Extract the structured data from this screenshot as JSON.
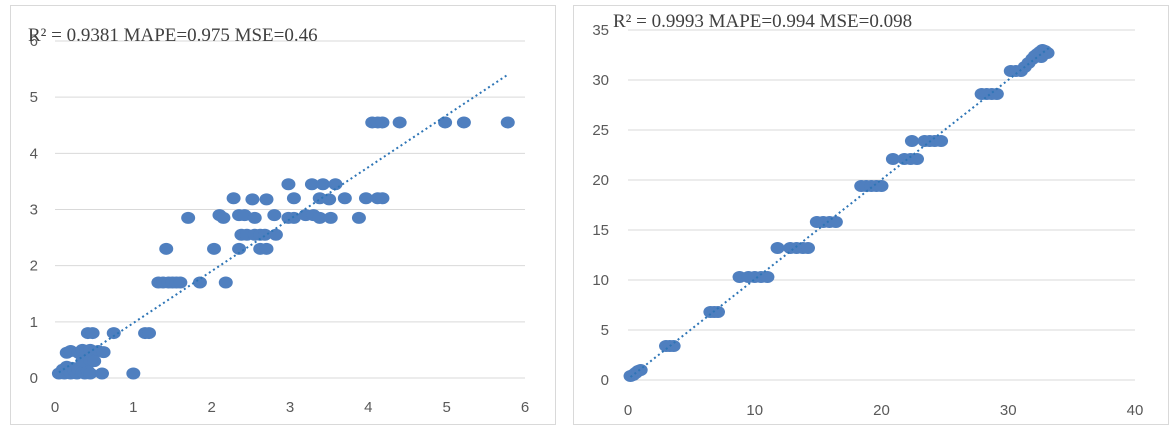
{
  "chart_data": [
    {
      "type": "scatter",
      "title": "R² = 0.9381 MAPE=0.975 MSE=0.46",
      "xlabel": "",
      "ylabel": "",
      "xlim": [
        0,
        6
      ],
      "ylim": [
        0,
        6
      ],
      "x_ticks": [
        "0",
        "1",
        "2",
        "3",
        "4",
        "5",
        "6"
      ],
      "y_ticks": [
        "0",
        "1",
        "2",
        "3",
        "4",
        "5",
        "6"
      ],
      "grid": "horizontal",
      "marker_color": "#4f7fbf",
      "trendline": {
        "style": "dotted",
        "color": "#2e75b6",
        "from": [
          0.05,
          0.1
        ],
        "to": [
          5.78,
          5.4
        ]
      },
      "series": [
        {
          "points": [
            [
              0.05,
              0.08
            ],
            [
              0.08,
              0.1
            ],
            [
              0.1,
              0.15
            ],
            [
              0.12,
              0.08
            ],
            [
              0.15,
              0.2
            ],
            [
              0.18,
              0.12
            ],
            [
              0.2,
              0.08
            ],
            [
              0.22,
              0.18
            ],
            [
              0.25,
              0.12
            ],
            [
              0.28,
              0.08
            ],
            [
              0.3,
              0.15
            ],
            [
              0.33,
              0.2
            ],
            [
              0.35,
              0.1
            ],
            [
              0.38,
              0.08
            ],
            [
              0.4,
              0.18
            ],
            [
              0.42,
              0.12
            ],
            [
              0.45,
              0.08
            ],
            [
              0.15,
              0.45
            ],
            [
              0.2,
              0.48
            ],
            [
              0.3,
              0.45
            ],
            [
              0.35,
              0.5
            ],
            [
              0.4,
              0.48
            ],
            [
              0.45,
              0.5
            ],
            [
              0.5,
              0.46
            ],
            [
              0.55,
              0.48
            ],
            [
              0.62,
              0.46
            ],
            [
              0.42,
              0.8
            ],
            [
              0.48,
              0.8
            ],
            [
              0.75,
              0.8
            ],
            [
              0.35,
              0.3
            ],
            [
              0.45,
              0.32
            ],
            [
              0.5,
              0.3
            ],
            [
              0.6,
              0.08
            ],
            [
              1.0,
              0.08
            ],
            [
              1.15,
              0.8
            ],
            [
              1.2,
              0.8
            ],
            [
              1.32,
              1.7
            ],
            [
              1.38,
              1.7
            ],
            [
              1.45,
              1.7
            ],
            [
              1.5,
              1.7
            ],
            [
              1.55,
              1.7
            ],
            [
              1.6,
              1.7
            ],
            [
              1.85,
              1.7
            ],
            [
              2.18,
              1.7
            ],
            [
              1.42,
              2.3
            ],
            [
              2.03,
              2.3
            ],
            [
              2.35,
              2.3
            ],
            [
              2.62,
              2.3
            ],
            [
              2.7,
              2.3
            ],
            [
              2.38,
              2.55
            ],
            [
              2.45,
              2.55
            ],
            [
              2.55,
              2.55
            ],
            [
              2.62,
              2.55
            ],
            [
              2.68,
              2.55
            ],
            [
              2.82,
              2.55
            ],
            [
              1.7,
              2.85
            ],
            [
              2.1,
              2.9
            ],
            [
              2.15,
              2.85
            ],
            [
              2.35,
              2.9
            ],
            [
              2.42,
              2.9
            ],
            [
              2.55,
              2.85
            ],
            [
              2.8,
              2.9
            ],
            [
              2.98,
              2.85
            ],
            [
              3.05,
              2.85
            ],
            [
              3.2,
              2.9
            ],
            [
              3.3,
              2.9
            ],
            [
              3.38,
              2.85
            ],
            [
              3.52,
              2.85
            ],
            [
              3.88,
              2.85
            ],
            [
              2.28,
              3.2
            ],
            [
              2.52,
              3.18
            ],
            [
              2.7,
              3.18
            ],
            [
              3.05,
              3.2
            ],
            [
              3.38,
              3.2
            ],
            [
              3.5,
              3.18
            ],
            [
              3.7,
              3.2
            ],
            [
              3.97,
              3.2
            ],
            [
              4.12,
              3.2
            ],
            [
              4.18,
              3.2
            ],
            [
              2.98,
              3.45
            ],
            [
              3.28,
              3.45
            ],
            [
              3.42,
              3.45
            ],
            [
              3.58,
              3.45
            ],
            [
              4.05,
              4.55
            ],
            [
              4.12,
              4.55
            ],
            [
              4.18,
              4.55
            ],
            [
              4.4,
              4.55
            ],
            [
              4.98,
              4.55
            ],
            [
              5.22,
              4.55
            ],
            [
              5.78,
              4.55
            ]
          ]
        }
      ]
    },
    {
      "type": "scatter",
      "title": "R² = 0.9993  MAPE=0.994 MSE=0.098",
      "xlabel": "",
      "ylabel": "",
      "xlim": [
        0,
        40
      ],
      "ylim": [
        0,
        35
      ],
      "x_ticks": [
        "0",
        "10",
        "20",
        "30",
        "40"
      ],
      "y_ticks": [
        "0",
        "5",
        "10",
        "15",
        "20",
        "25",
        "30",
        "35"
      ],
      "grid": "horizontal",
      "marker_color": "#4f7fbf",
      "trendline": {
        "style": "dotted",
        "color": "#2e75b6",
        "from": [
          0.2,
          0.3
        ],
        "to": [
          33.2,
          33.2
        ]
      },
      "series": [
        {
          "points": [
            [
              0.2,
              0.4
            ],
            [
              0.4,
              0.5
            ],
            [
              0.6,
              0.7
            ],
            [
              0.8,
              0.9
            ],
            [
              1.0,
              1.0
            ],
            [
              3.0,
              3.4
            ],
            [
              3.3,
              3.4
            ],
            [
              3.6,
              3.4
            ],
            [
              6.5,
              6.8
            ],
            [
              6.8,
              6.8
            ],
            [
              7.1,
              6.8
            ],
            [
              8.8,
              10.3
            ],
            [
              9.5,
              10.3
            ],
            [
              10.0,
              10.3
            ],
            [
              10.5,
              10.3
            ],
            [
              11.0,
              10.3
            ],
            [
              11.8,
              13.2
            ],
            [
              12.8,
              13.2
            ],
            [
              13.3,
              13.2
            ],
            [
              13.8,
              13.2
            ],
            [
              14.2,
              13.2
            ],
            [
              14.9,
              15.8
            ],
            [
              15.4,
              15.8
            ],
            [
              15.9,
              15.8
            ],
            [
              16.4,
              15.8
            ],
            [
              18.4,
              19.4
            ],
            [
              18.8,
              19.4
            ],
            [
              19.2,
              19.4
            ],
            [
              19.6,
              19.4
            ],
            [
              20.0,
              19.4
            ],
            [
              20.9,
              22.1
            ],
            [
              21.8,
              22.1
            ],
            [
              22.3,
              22.1
            ],
            [
              22.8,
              22.1
            ],
            [
              22.4,
              23.9
            ],
            [
              23.4,
              23.9
            ],
            [
              23.8,
              23.9
            ],
            [
              24.2,
              23.9
            ],
            [
              24.7,
              23.9
            ],
            [
              27.9,
              28.6
            ],
            [
              28.3,
              28.6
            ],
            [
              28.7,
              28.6
            ],
            [
              29.1,
              28.6
            ],
            [
              30.2,
              30.9
            ],
            [
              30.6,
              30.9
            ],
            [
              31.0,
              30.9
            ],
            [
              31.3,
              31.3
            ],
            [
              31.6,
              31.7
            ],
            [
              31.9,
              32.1
            ],
            [
              32.1,
              32.4
            ],
            [
              32.3,
              32.6
            ],
            [
              32.5,
              32.8
            ],
            [
              32.7,
              33.0
            ],
            [
              32.9,
              32.9
            ],
            [
              33.1,
              32.7
            ],
            [
              32.6,
              32.3
            ]
          ]
        }
      ]
    }
  ]
}
